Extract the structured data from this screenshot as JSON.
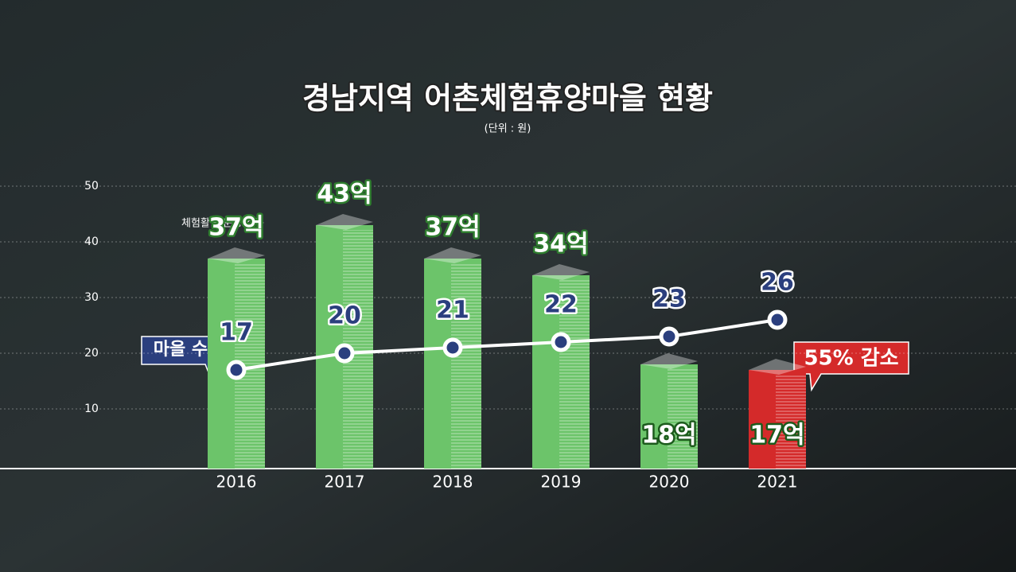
{
  "chart_data": {
    "type": "bar-line",
    "title": "경남지역 어촌체험휴양마을 현황",
    "subtitle": "(단위 : 원)",
    "categories": [
      "2016",
      "2017",
      "2018",
      "2019",
      "2020",
      "2021"
    ],
    "ylim": [
      0,
      50
    ],
    "yticks": [
      10,
      20,
      30,
      40,
      50
    ],
    "grid": true,
    "series": [
      {
        "name": "체험활동 운영 소득",
        "type": "bar",
        "colors": [
          "#6cc46a",
          "#6cc46a",
          "#6cc46a",
          "#6cc46a",
          "#6cc46a",
          "#d42a2a"
        ],
        "values": [
          37,
          43,
          37,
          34,
          18,
          17
        ],
        "value_labels": [
          "37억",
          "43억",
          "37억",
          "34억",
          "18억",
          "17억"
        ]
      },
      {
        "name": "마을 수",
        "type": "line",
        "color": "#ffffff",
        "label_color": "#2b3f7e",
        "values": [
          17,
          20,
          21,
          22,
          23,
          26
        ]
      }
    ],
    "annotation": "55% 감소"
  }
}
